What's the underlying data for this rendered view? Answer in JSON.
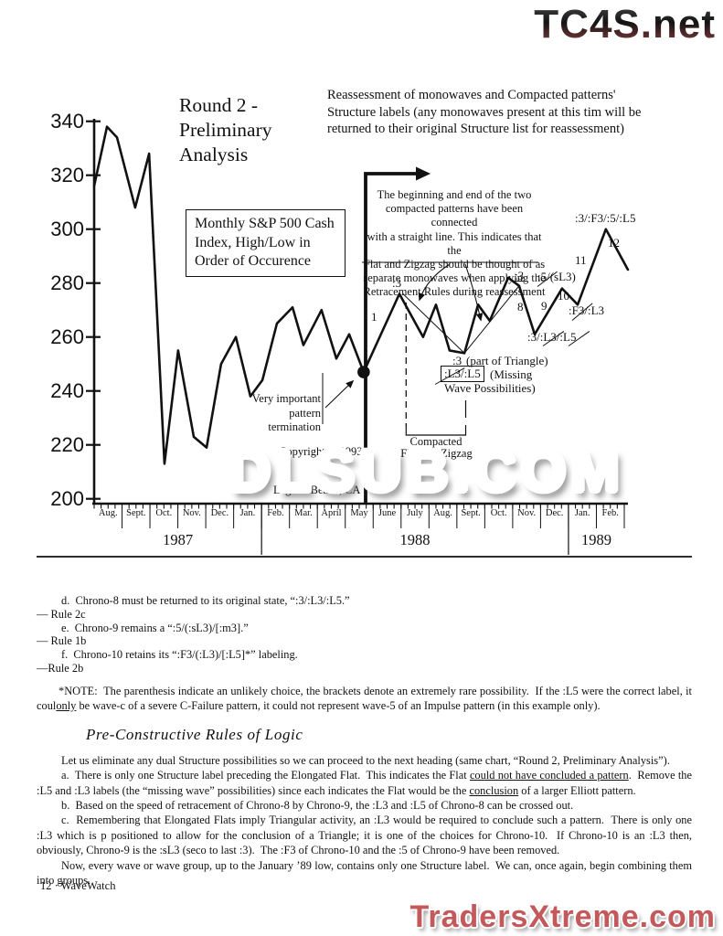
{
  "watermarks": {
    "tc4s": "TC4S.net",
    "dlsub": "DLSUB.COM",
    "traders": "TradersXtreme.com"
  },
  "chart": {
    "heading_lines": [
      "Round 2 -",
      "Preliminary",
      "Analysis"
    ],
    "reassessment_lines": [
      "Reassessment of monowaves and Compacted patterns'",
      "Structure labels (any monowaves present at this tim will be",
      "returned to their original Structure list for reassessment)"
    ],
    "box_lines": [
      "Monthly S&P 500 Cash",
      "Index, High/Low in",
      "Order of Occurence"
    ],
    "callout_lines": [
      "The beginning and end of the two",
      "compacted patterns have been connected",
      "with a straight line.  This indicates that the",
      "Flat and Zigzag should be thought of as",
      "separate monowaves when applying the",
      "Retracement Rules during reassessment"
    ],
    "very_important_lines": [
      "Very important",
      "pattern",
      "termination"
    ],
    "compacted_lines": [
      "Compacted",
      "Flat and Zigzag"
    ],
    "copyright": "Copyright © 1993",
    "location": "Laguna Beach, CA",
    "labels": {
      "one": "1",
      "three_a": ":3",
      "three_b": ":3",
      "eight": "8",
      "nine": "9",
      "ten": "10",
      "eleven": "11",
      "twelve": "12",
      "seq_top": ":3/:F3/:5/:L5",
      "five_sl3": ":5/(sL3)",
      "f3_l3": ":F3/:L3",
      "three_l3_l5": ":3/:L3/:L5",
      "tri_three": ":3",
      "tri_rest": "(part of Triangle)",
      "missing_box": ":L3/:L5",
      "missing_a": "(Missing",
      "missing_b": "Wave Possibilities)"
    }
  },
  "chart_data": {
    "type": "line",
    "title": "Monthly S&P 500 Cash Index, High/Low in Order of Occurence",
    "ylabel": "S&P 500 Cash Index",
    "ylim": [
      200,
      340
    ],
    "y_ticks": [
      340,
      320,
      300,
      280,
      260,
      240,
      220,
      200
    ],
    "x_axis": {
      "months": [
        "Aug.",
        "Sept.",
        "Oct.",
        "Nov.",
        "Dec.",
        "Jan.",
        "Feb.",
        "Mar.",
        "April",
        "May",
        "June",
        "July",
        "Aug.",
        "Sept.",
        "Oct.",
        "Nov.",
        "Dec.",
        "Jan.",
        "Feb."
      ],
      "years": [
        {
          "label": "1987",
          "span": [
            0,
            6
          ]
        },
        {
          "label": "1988",
          "span": [
            6,
            17
          ]
        },
        {
          "label": "1989",
          "span": [
            17,
            19
          ]
        }
      ]
    },
    "series": [
      {
        "name": "S&P 500 high/low in order of occurrence",
        "points": [
          [
            0.0,
            316
          ],
          [
            0.46,
            338
          ],
          [
            0.82,
            334
          ],
          [
            1.47,
            308
          ],
          [
            1.97,
            328
          ],
          [
            2.52,
            213
          ],
          [
            3.01,
            255
          ],
          [
            3.57,
            223
          ],
          [
            4.03,
            219
          ],
          [
            4.55,
            250
          ],
          [
            5.08,
            260
          ],
          [
            5.6,
            238
          ],
          [
            6.03,
            244
          ],
          [
            6.55,
            265
          ],
          [
            7.11,
            271
          ],
          [
            7.5,
            257
          ],
          [
            8.15,
            270
          ],
          [
            8.68,
            252
          ],
          [
            9.14,
            261
          ],
          [
            9.66,
            247
          ],
          [
            10.94,
            276
          ],
          [
            11.79,
            260
          ],
          [
            12.25,
            272
          ],
          [
            12.74,
            255
          ],
          [
            13.27,
            254
          ],
          [
            13.76,
            272
          ],
          [
            14.18,
            266
          ],
          [
            14.84,
            282
          ],
          [
            15.23,
            279
          ],
          [
            15.79,
            261
          ],
          [
            16.77,
            278
          ],
          [
            17.33,
            272
          ],
          [
            18.34,
            300
          ],
          [
            19.13,
            285
          ]
        ]
      }
    ],
    "connector_line": [
      [
        11.07,
        276
      ],
      [
        13.27,
        254
      ],
      [
        15.23,
        279
      ]
    ],
    "key_points": {
      "pattern_termination": [
        9.66,
        247
      ]
    }
  },
  "body": {
    "rules": [
      {
        "kind": "item",
        "text": "d.  Chrono-8 must be returned to its original state, “:3/:L3/:L5.”"
      },
      {
        "kind": "rule",
        "text": "— Rule 2c"
      },
      {
        "kind": "item",
        "text": "e.  Chrono-9 remains a “:5/(:sL3)/[:m3].”"
      },
      {
        "kind": "rule",
        "text": "— Rule 1b"
      },
      {
        "kind": "item",
        "text": "f.  Chrono-10 retains its “:F3/(:L3)/[:L5]*” labeling."
      },
      {
        "kind": "rule",
        "text": "—Rule 2b"
      }
    ],
    "note_segments": [
      {
        "t": "*NOTE:  The parenthesis indicate an unlikely choice, the brackets denote an extremely rare possibility.  If the :L5 were the correct label, it coul",
        "u": false
      },
      {
        "t": "only",
        "u": true
      },
      {
        "t": " be wave-c of a severe C-Failure pattern, it could not represent wave-5 of an Impulse pattern (in this example only).",
        "u": false
      }
    ],
    "script_heading": "Pre-Constructive Rules of Logic",
    "paragraphs": [
      [
        {
          "t": "Let us eliminate any dual Structure possibilities so we can proceed to the next heading (same chart, “Round 2, Preliminary Analysis”).",
          "u": false
        }
      ],
      [
        {
          "t": "a.  There is only one Structure label preceding the Elongated Flat.  This indicates the Flat ",
          "u": false
        },
        {
          "t": "could not have concluded a pattern",
          "u": true
        },
        {
          "t": ".  Remove the :L5 and :L3 labels (the “missing wave” possibilities) since each indicates the Flat would be the ",
          "u": false
        },
        {
          "t": "conclusion",
          "u": true
        },
        {
          "t": " of a larger Elliott pattern.",
          "u": false
        }
      ],
      [
        {
          "t": "b.  Based on the speed of retracement of Chrono-8 by Chrono-9, the :L3 and :L5 of Chrono-8 can be crossed out.",
          "u": false
        }
      ],
      [
        {
          "t": "c.  Remembering that Elongated Flats imply Triangular activity, an :L3 would be required to conclude such a pattern.  There is only one :L3 which is p positioned to allow for the conclusion of a Triangle; it is one of the choices for Chrono-10.  If Chrono-10 is an :L3 then, obviously, Chrono-9 is the :sL3 (seco to last :3).  The :F3 of Chrono-10 and the :5 of Chrono-9 have been removed.",
          "u": false
        }
      ],
      [
        {
          "t": "Now, every wave or wave group, up to the January ’89 low, contains only one Structure label.  We can, once again, begin combining them into groups.",
          "u": false
        }
      ]
    ]
  },
  "footer": {
    "page_label": "12 · WaveWatch"
  }
}
